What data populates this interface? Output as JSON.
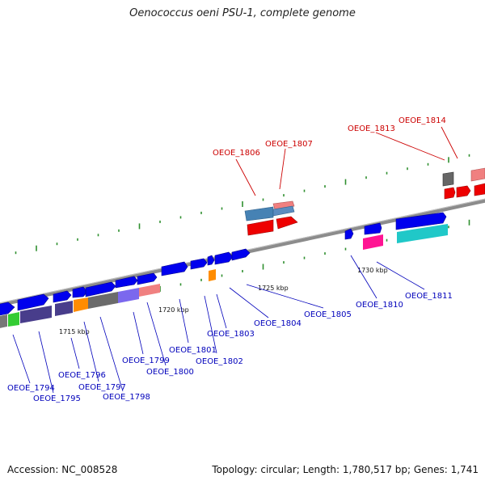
{
  "title": "Oenococcus oeni PSU-1, complete genome",
  "footer": {
    "accession": "Accession: NC_008528",
    "topology": "Topology: circular; Length: 1,780,517 bp; Genes: 1,741"
  },
  "colors": {
    "backbone": "#8c8c8c",
    "forward_gene": "#0000ee",
    "tick": "#2f8f2f",
    "highlight_label": "#cc0000",
    "default_label": "#0000bb"
  },
  "kbp_markers": [
    "1715 kbp",
    "1720 kbp",
    "1725 kbp",
    "1730 kbp"
  ],
  "gene_labels": {
    "highlighted": [
      "OEOE_1806",
      "OEOE_1807",
      "OEOE_1813",
      "OEOE_1814"
    ],
    "lower": [
      "OEOE_1794",
      "OEOE_1795",
      "OEOE_1796",
      "OEOE_1797",
      "OEOE_1798",
      "OEOE_1799",
      "OEOE_1800",
      "OEOE_1801",
      "OEOE_1802",
      "OEOE_1803",
      "OEOE_1804",
      "OEOE_1805",
      "OEOE_1810",
      "OEOE_1811"
    ]
  }
}
